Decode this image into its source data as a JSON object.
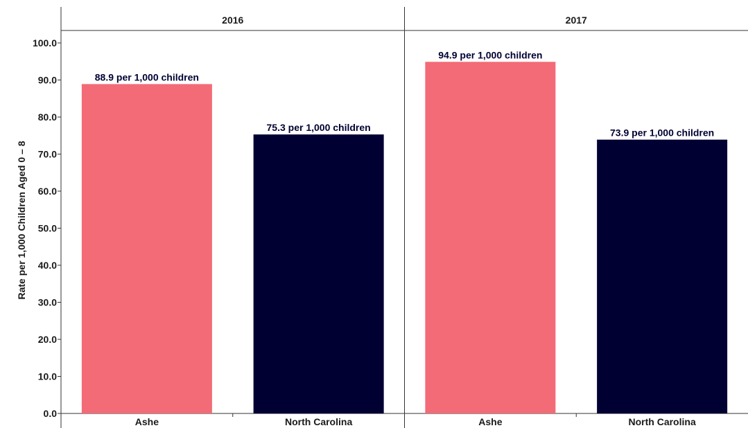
{
  "chart_data": {
    "type": "bar",
    "ylabel": "Rate per 1,000 Children Aged 0 – 8",
    "ylim": [
      0,
      100
    ],
    "yticks": [
      0,
      10,
      20,
      30,
      40,
      50,
      60,
      70,
      80,
      90,
      100
    ],
    "ytick_labels": [
      "0.0",
      "10.0",
      "20.0",
      "30.0",
      "40.0",
      "50.0",
      "60.0",
      "70.0",
      "80.0",
      "90.0",
      "100.0"
    ],
    "categories": [
      "Ashe",
      "North Carolina"
    ],
    "colors": {
      "Ashe": "#f26b76",
      "North Carolina": "#000033"
    },
    "panels": [
      {
        "title": "2016",
        "values": [
          88.9,
          75.3
        ],
        "labels": [
          "88.9 per 1,000 children",
          "75.3 per 1,000 children"
        ]
      },
      {
        "title": "2017",
        "values": [
          94.9,
          73.9
        ],
        "labels": [
          "94.9 per 1,000 children",
          "73.9 per 1,000 children"
        ]
      }
    ],
    "grid": false,
    "legend": "none"
  }
}
